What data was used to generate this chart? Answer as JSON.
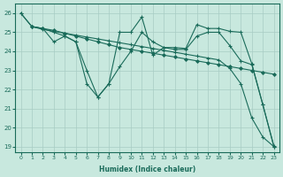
{
  "xlabel": "Humidex (Indice chaleur)",
  "bg_color": "#c8e8de",
  "line_color": "#1a6b5a",
  "grid_color": "#a8ccc4",
  "xlim": [
    -0.5,
    23.5
  ],
  "ylim": [
    18.7,
    26.5
  ],
  "xticks": [
    0,
    1,
    2,
    3,
    4,
    5,
    6,
    7,
    8,
    9,
    10,
    11,
    12,
    13,
    14,
    15,
    16,
    17,
    18,
    19,
    20,
    21,
    22,
    23
  ],
  "yticks": [
    19,
    20,
    21,
    22,
    23,
    24,
    25,
    26
  ],
  "line1_x": [
    0,
    1,
    2,
    3,
    4,
    5,
    6,
    7,
    8,
    9,
    10,
    11,
    12,
    13,
    14,
    15,
    16,
    17,
    18,
    19,
    20,
    21,
    22,
    23
  ],
  "line1_y": [
    26.0,
    25.3,
    25.15,
    25.05,
    24.95,
    24.85,
    24.75,
    24.65,
    24.55,
    24.45,
    24.35,
    24.25,
    24.15,
    24.05,
    23.95,
    23.85,
    23.75,
    23.65,
    23.55,
    23.1,
    22.3,
    20.5,
    19.5,
    19.0
  ],
  "line2_x": [
    0,
    1,
    2,
    3,
    4,
    5,
    6,
    7,
    8,
    9,
    10,
    11,
    12,
    13,
    14,
    15,
    16,
    17,
    18,
    19,
    20,
    21,
    22,
    23
  ],
  "line2_y": [
    26.0,
    25.3,
    25.2,
    25.0,
    24.8,
    24.5,
    23.0,
    21.6,
    22.3,
    25.0,
    25.0,
    25.8,
    23.8,
    24.2,
    24.2,
    24.15,
    25.4,
    25.2,
    25.2,
    25.05,
    25.0,
    23.35,
    21.2,
    19.05
  ],
  "line3_x": [
    1,
    2,
    3,
    4,
    5,
    6,
    7,
    8,
    9,
    10,
    11,
    12,
    13,
    14,
    15,
    16,
    17,
    18,
    19,
    20,
    21,
    22,
    23
  ],
  "line3_y": [
    25.3,
    25.2,
    25.1,
    24.95,
    24.8,
    24.65,
    24.5,
    24.35,
    24.2,
    24.1,
    24.0,
    23.9,
    23.8,
    23.7,
    23.6,
    23.5,
    23.4,
    23.3,
    23.2,
    23.1,
    23.0,
    22.9,
    22.8
  ],
  "line4_x": [
    1,
    2,
    3,
    4,
    5,
    6,
    7,
    8,
    9,
    10,
    11,
    12,
    13,
    14,
    15,
    16,
    17,
    18,
    19,
    20,
    21,
    22,
    23
  ],
  "line4_y": [
    25.3,
    25.2,
    24.5,
    24.8,
    24.5,
    22.3,
    21.6,
    22.3,
    23.2,
    24.0,
    25.0,
    24.5,
    24.2,
    24.1,
    24.1,
    24.8,
    25.0,
    25.0,
    24.3,
    23.5,
    23.3,
    21.2,
    19.0
  ]
}
